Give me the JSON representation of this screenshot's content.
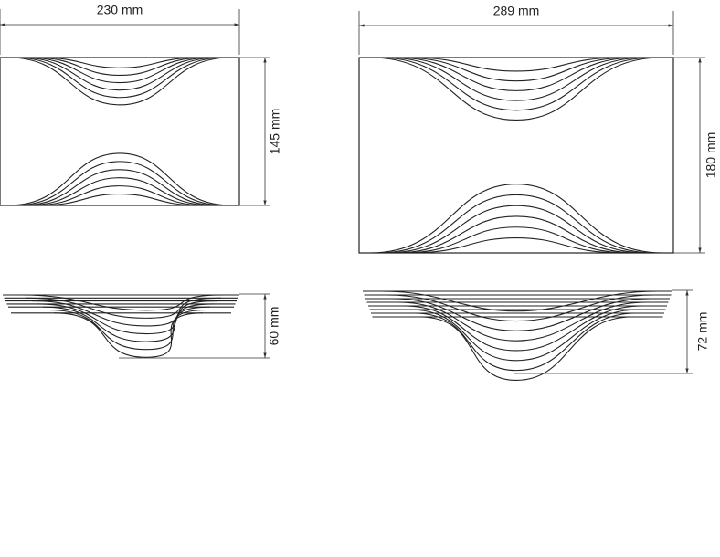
{
  "small": {
    "width": "230 mm",
    "height": "145 mm",
    "depth": "60 mm"
  },
  "large": {
    "width": "289 mm",
    "height": "180 mm",
    "depth": "72 mm"
  }
}
